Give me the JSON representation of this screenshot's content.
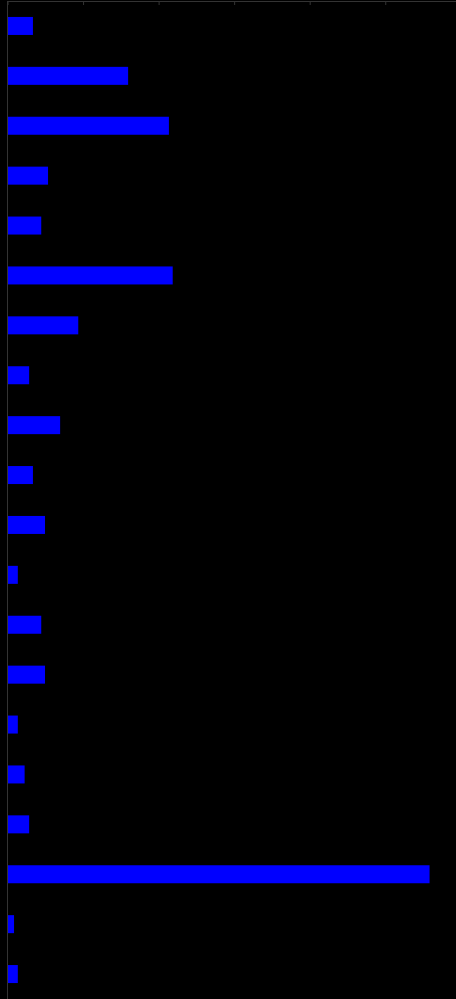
{
  "chart_data": {
    "type": "hbar",
    "categories": [
      null,
      null,
      null,
      null,
      null,
      null,
      null,
      null,
      null,
      null,
      null,
      null,
      null,
      null,
      null,
      null,
      null,
      null,
      null,
      null
    ],
    "values": [
      3.3,
      15.9,
      21.3,
      5.3,
      4.4,
      21.8,
      9.3,
      2.8,
      6.9,
      3.3,
      4.9,
      1.3,
      4.4,
      4.9,
      1.3,
      2.2,
      2.8,
      55.8,
      0.8,
      1.3
    ],
    "color": "#0000ff",
    "xlim": [
      0,
      59.3
    ],
    "xticks": [
      0,
      10,
      20,
      30,
      40,
      50
    ],
    "grid": false
  }
}
